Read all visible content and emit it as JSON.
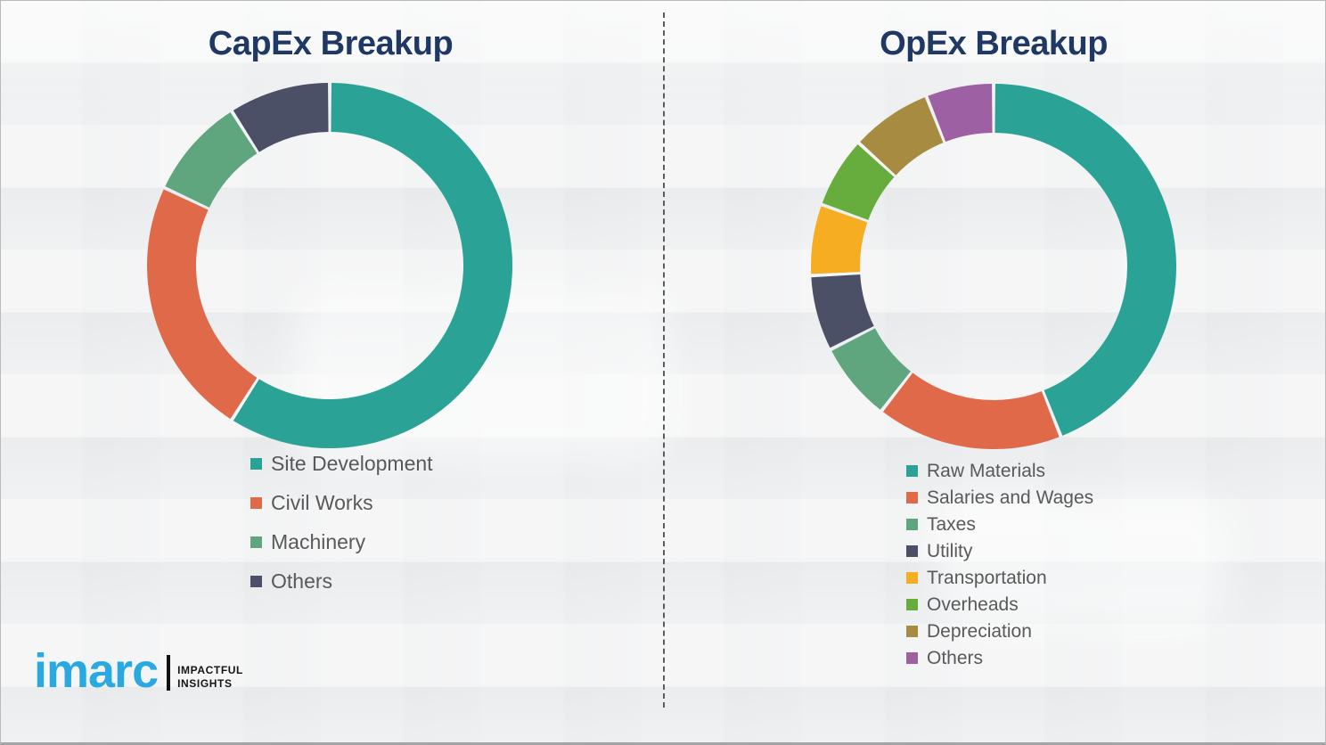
{
  "page": {
    "background_color": "#eff0f1",
    "divider_style": "vertical dashed"
  },
  "logo": {
    "brand": "imarc",
    "brand_color": "#29a9e0",
    "tagline_line1": "IMPACTFUL",
    "tagline_line2": "INSIGHTS"
  },
  "chart_data": [
    {
      "type": "pie",
      "subtype": "donut",
      "title": "CapEx Breakup",
      "title_color": "#1f3864",
      "legend_position": "below",
      "units": "percent",
      "start_angle_deg": 0,
      "direction": "clockwise",
      "slices": [
        {
          "label": "Site Development",
          "value": 59,
          "color": "#2aa396"
        },
        {
          "label": "Civil Works",
          "value": 23,
          "color": "#e0694a"
        },
        {
          "label": "Machinery",
          "value": 9,
          "color": "#5fa57e"
        },
        {
          "label": "Others",
          "value": 9,
          "color": "#4b5067"
        }
      ]
    },
    {
      "type": "pie",
      "subtype": "donut",
      "title": "OpEx Breakup",
      "title_color": "#1f3864",
      "legend_position": "below",
      "units": "percent",
      "start_angle_deg": 0,
      "direction": "clockwise",
      "slices": [
        {
          "label": "Raw Materials",
          "value": 44,
          "color": "#2aa396"
        },
        {
          "label": "Salaries and Wages",
          "value": 16.5,
          "color": "#e0694a"
        },
        {
          "label": "Taxes",
          "value": 7,
          "color": "#5fa57e"
        },
        {
          "label": "Utility",
          "value": 6.7,
          "color": "#4b5067"
        },
        {
          "label": "Transportation",
          "value": 6.3,
          "color": "#f6ad21"
        },
        {
          "label": "Overheads",
          "value": 6.3,
          "color": "#66ad3d"
        },
        {
          "label": "Depreciation",
          "value": 7.2,
          "color": "#a68b40"
        },
        {
          "label": "Others",
          "value": 6,
          "color": "#9c60a3"
        }
      ]
    }
  ]
}
